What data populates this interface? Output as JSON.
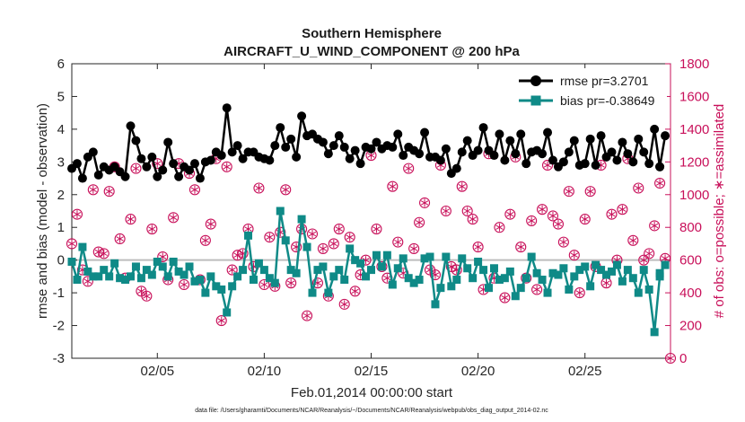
{
  "colors": {
    "rmse": "#000000",
    "bias": "#0f8a87",
    "obs": "#c8105a",
    "zero_line": "#bdbdbd",
    "axis": "#262626"
  },
  "chart_data": {
    "type": "line",
    "title": "Southern Hemisphere",
    "subtitle": "AIRCRAFT_U_WIND_COMPONENT @ 200 hPa",
    "xlabel": "Feb.01,2014 00:00:00 start",
    "ylabel": "rmse and bias (model - observation)",
    "y2label": "# of obs: o=possible; ∗=assimilated",
    "xlim": [
      1,
      29
    ],
    "ylim": [
      -3,
      6
    ],
    "y2lim": [
      0,
      1800
    ],
    "xticks": [
      5,
      10,
      15,
      20,
      25
    ],
    "xtick_labels": [
      "02/05",
      "02/10",
      "02/15",
      "02/20",
      "02/25"
    ],
    "yticks": [
      -3,
      -2,
      -1,
      0,
      1,
      2,
      3,
      4,
      5,
      6
    ],
    "ytick_labels": [
      "-3",
      "-2",
      "-1",
      "0",
      "1",
      "2",
      "3",
      "4",
      "5",
      "6"
    ],
    "y2ticks": [
      0,
      200,
      400,
      600,
      800,
      1000,
      1200,
      1400,
      1600,
      1800
    ],
    "y2tick_labels": [
      "0",
      "200",
      "400",
      "600",
      "800",
      "1000",
      "1200",
      "1400",
      "1600",
      "1800"
    ],
    "footnote": "data file: /Users/gharamti/Documents/NCAR/Reanalysis/~/Documents/NCAR/Reanalysis/webpub/obs_diag_output_2014-02.nc",
    "legend_location": "top-right",
    "series": [
      {
        "name": "rmse",
        "legend_label": "rmse pr=3.2701",
        "marker": "circle",
        "x": [
          1.0,
          1.25,
          1.5,
          1.75,
          2.0,
          2.25,
          2.5,
          2.75,
          3.0,
          3.25,
          3.5,
          3.75,
          4.0,
          4.25,
          4.5,
          4.75,
          5.0,
          5.25,
          5.5,
          5.75,
          6.0,
          6.25,
          6.5,
          6.75,
          7.0,
          7.25,
          7.5,
          7.75,
          8.0,
          8.25,
          8.5,
          8.75,
          9.0,
          9.25,
          9.5,
          9.75,
          10.0,
          10.25,
          10.5,
          10.75,
          11.0,
          11.25,
          11.5,
          11.75,
          12.0,
          12.25,
          12.5,
          12.75,
          13.0,
          13.25,
          13.5,
          13.75,
          14.0,
          14.25,
          14.5,
          14.75,
          15.0,
          15.25,
          15.5,
          15.75,
          16.0,
          16.25,
          16.5,
          16.75,
          17.0,
          17.25,
          17.5,
          17.75,
          18.0,
          18.25,
          18.5,
          18.75,
          19.0,
          19.25,
          19.5,
          19.75,
          20.0,
          20.25,
          20.5,
          20.75,
          21.0,
          21.25,
          21.5,
          21.75,
          22.0,
          22.25,
          22.5,
          22.75,
          23.0,
          23.25,
          23.5,
          23.75,
          24.0,
          24.25,
          24.5,
          24.75,
          25.0,
          25.25,
          25.5,
          25.75,
          26.0,
          26.25,
          26.5,
          26.75,
          27.0,
          27.25,
          27.5,
          27.75,
          28.0,
          28.25,
          28.5,
          28.75
        ],
        "values": [
          2.8,
          2.95,
          2.5,
          3.15,
          3.3,
          2.6,
          2.85,
          2.75,
          2.85,
          2.7,
          2.55,
          4.1,
          3.65,
          3.1,
          2.85,
          3.15,
          2.55,
          2.75,
          3.6,
          2.95,
          2.55,
          2.85,
          2.75,
          2.95,
          2.5,
          3.0,
          3.05,
          3.3,
          3.2,
          4.65,
          3.3,
          3.5,
          3.1,
          3.3,
          3.3,
          3.15,
          3.1,
          3.05,
          3.5,
          4.05,
          3.45,
          3.7,
          3.15,
          4.4,
          3.8,
          3.85,
          3.7,
          3.6,
          3.25,
          3.5,
          3.8,
          3.45,
          3.1,
          3.35,
          2.95,
          3.45,
          3.4,
          3.6,
          3.4,
          3.5,
          3.45,
          3.85,
          3.2,
          3.45,
          3.35,
          3.25,
          3.9,
          3.15,
          3.15,
          3.05,
          3.4,
          2.65,
          2.8,
          3.3,
          3.65,
          3.2,
          3.35,
          4.05,
          3.35,
          3.2,
          3.85,
          3.05,
          3.65,
          3.25,
          3.85,
          2.95,
          3.3,
          3.35,
          3.25,
          3.9,
          3.05,
          2.85,
          3.0,
          3.3,
          3.65,
          2.9,
          2.95,
          3.7,
          2.9,
          3.8,
          3.15,
          3.3,
          3.05,
          3.6,
          3.25,
          3.0,
          3.7,
          3.3,
          2.95,
          4.0,
          2.85,
          3.8
        ],
        "x_extra": [
          28.5
        ],
        "values_extra": [
          2.85
        ]
      },
      {
        "name": "bias",
        "legend_label": "bias pr=-0.38649",
        "marker": "square",
        "x": [
          1.0,
          1.25,
          1.5,
          1.75,
          2.0,
          2.25,
          2.5,
          2.75,
          3.0,
          3.25,
          3.5,
          3.75,
          4.0,
          4.25,
          4.5,
          4.75,
          5.0,
          5.25,
          5.5,
          5.75,
          6.0,
          6.25,
          6.5,
          6.75,
          7.0,
          7.25,
          7.5,
          7.75,
          8.0,
          8.25,
          8.5,
          8.75,
          9.0,
          9.25,
          9.5,
          9.75,
          10.0,
          10.25,
          10.5,
          10.75,
          11.0,
          11.25,
          11.5,
          11.75,
          12.0,
          12.25,
          12.5,
          12.75,
          13.0,
          13.25,
          13.5,
          13.75,
          14.0,
          14.25,
          14.5,
          14.75,
          15.0,
          15.25,
          15.5,
          15.75,
          16.0,
          16.25,
          16.5,
          16.75,
          17.0,
          17.25,
          17.5,
          17.75,
          18.0,
          18.25,
          18.5,
          18.75,
          19.0,
          19.25,
          19.5,
          19.75,
          20.0,
          20.25,
          20.5,
          20.75,
          21.0,
          21.25,
          21.5,
          21.75,
          22.0,
          22.25,
          22.5,
          22.75,
          23.0,
          23.25,
          23.5,
          23.75,
          24.0,
          24.25,
          24.5,
          24.75,
          25.0,
          25.25,
          25.5,
          25.75,
          26.0,
          26.25,
          26.5,
          26.75,
          27.0,
          27.25,
          27.5,
          27.75,
          28.0,
          28.25,
          28.5,
          28.75
        ],
        "values": [
          -0.05,
          -0.6,
          0.4,
          -0.35,
          -0.5,
          -0.5,
          -0.3,
          -0.5,
          -0.1,
          -0.55,
          -0.6,
          -0.5,
          -0.2,
          -0.55,
          -0.3,
          -0.45,
          -0.05,
          -0.2,
          -0.5,
          -0.05,
          -0.35,
          -0.45,
          -0.2,
          -0.65,
          -0.6,
          -1.0,
          -0.5,
          -0.8,
          -0.9,
          -1.6,
          -0.8,
          -0.5,
          -0.3,
          0.75,
          -0.6,
          -0.1,
          -0.3,
          -0.55,
          -0.7,
          1.5,
          0.6,
          -0.3,
          -0.4,
          1.25,
          0.4,
          -1.0,
          -0.3,
          -0.2,
          -1.0,
          -0.5,
          -0.3,
          -0.6,
          0.35,
          0.0,
          -0.1,
          -0.5,
          -0.3,
          0.15,
          -0.2,
          0.15,
          -0.75,
          -0.25,
          0.05,
          -0.55,
          -0.7,
          -0.6,
          0.05,
          0.1,
          -1.35,
          -0.85,
          0.1,
          -0.8,
          -0.6,
          0.05,
          -0.25,
          -0.55,
          -0.05,
          -0.3,
          -0.85,
          -0.25,
          -0.6,
          -0.55,
          -0.35,
          -1.1,
          -0.85,
          -0.55,
          0.1,
          -0.4,
          -0.6,
          -1.0,
          -0.4,
          -0.45,
          -0.25,
          -0.9,
          -0.5,
          -0.3,
          -0.2,
          -0.8,
          -0.15,
          -0.3,
          -0.45,
          -0.35,
          -0.15,
          -0.65,
          -0.3,
          -0.55,
          -1.0,
          -0.3,
          -0.9,
          -2.2,
          -0.5,
          -0.15
        ],
        "x_extra": [
          28.5
        ],
        "values_extra": [
          -0.4
        ]
      },
      {
        "name": "obs_count",
        "axis": "right",
        "marker": "circle-asterisk",
        "x": [
          1.0,
          1.25,
          1.5,
          1.75,
          2.0,
          2.25,
          2.5,
          2.75,
          3.0,
          3.25,
          3.5,
          3.75,
          4.0,
          4.25,
          4.5,
          4.75,
          5.0,
          5.25,
          5.5,
          5.75,
          6.0,
          6.25,
          6.5,
          6.75,
          7.0,
          7.25,
          7.5,
          7.75,
          8.0,
          8.25,
          8.5,
          8.75,
          9.0,
          9.25,
          9.5,
          9.75,
          10.0,
          10.25,
          10.5,
          10.75,
          11.0,
          11.25,
          11.5,
          11.75,
          12.0,
          12.25,
          12.5,
          12.75,
          13.0,
          13.25,
          13.5,
          13.75,
          14.0,
          14.25,
          14.5,
          14.75,
          15.0,
          15.25,
          15.5,
          15.75,
          16.0,
          16.25,
          16.5,
          16.75,
          17.0,
          17.25,
          17.5,
          17.75,
          18.0,
          18.25,
          18.5,
          18.75,
          19.0,
          19.25,
          19.5,
          19.75,
          20.0,
          20.25,
          20.5,
          20.75,
          21.0,
          21.25,
          21.5,
          21.75,
          22.0,
          22.25,
          22.5,
          22.75,
          23.0,
          23.25,
          23.5,
          23.75,
          24.0,
          24.25,
          24.5,
          24.75,
          25.0,
          25.25,
          25.5,
          25.75,
          26.0,
          26.25,
          26.5,
          26.75,
          27.0,
          27.25,
          27.5,
          27.75,
          28.0,
          28.25,
          28.5,
          28.75
        ],
        "values": [
          700,
          880,
          540,
          470,
          1030,
          650,
          640,
          1020,
          1170,
          730,
          490,
          850,
          1160,
          410,
          380,
          790,
          1190,
          620,
          480,
          860,
          1190,
          450,
          1130,
          1030,
          480,
          720,
          820,
          1220,
          230,
          1170,
          540,
          630,
          640,
          790,
          560,
          1040,
          450,
          740,
          440,
          770,
          1030,
          460,
          680,
          790,
          260,
          760,
          460,
          670,
          380,
          700,
          790,
          330,
          740,
          410,
          510,
          600,
          1240,
          790,
          560,
          490,
          1050,
          710,
          520,
          1160,
          670,
          830,
          950,
          540,
          510,
          1180,
          900,
          560,
          540,
          1050,
          900,
          850,
          680,
          420,
          1250,
          490,
          800,
          370,
          880,
          1230,
          680,
          490,
          840,
          420,
          910,
          1180,
          870,
          820,
          710,
          1020,
          630,
          400,
          850,
          1020,
          560,
          1180,
          460,
          880,
          600,
          910,
          1220,
          720,
          1040,
          600,
          640,
          810,
          1070,
          610
        ],
        "x_extra": [
          29.0
        ],
        "values_extra": [
          0
        ]
      }
    ]
  }
}
